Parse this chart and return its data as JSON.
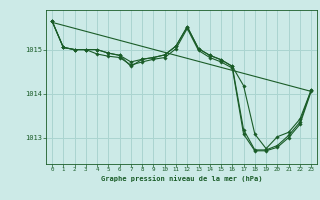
{
  "title": "Graphe pression niveau de la mer (hPa)",
  "background_color": "#cceae7",
  "grid_color": "#aad4d0",
  "line_color": "#1a5c28",
  "marker_color": "#1a5c28",
  "xlim": [
    -0.5,
    23.5
  ],
  "ylim": [
    1012.4,
    1015.9
  ],
  "yticks": [
    1013,
    1014,
    1015
  ],
  "xticks": [
    0,
    1,
    2,
    3,
    4,
    5,
    6,
    7,
    8,
    9,
    10,
    11,
    12,
    13,
    14,
    15,
    16,
    17,
    18,
    19,
    20,
    21,
    22,
    23
  ],
  "series1": [
    1015.65,
    1015.05,
    1015.0,
    1015.0,
    1015.0,
    1014.92,
    1014.87,
    1014.72,
    1014.78,
    1014.82,
    1014.88,
    1015.08,
    1015.52,
    1015.02,
    1014.87,
    1014.77,
    1014.62,
    1014.18,
    1013.08,
    1012.75,
    1013.02,
    1013.12,
    1013.42,
    1014.08
  ],
  "series2": [
    1015.65,
    1015.05,
    1015.0,
    1015.0,
    1015.0,
    1014.92,
    1014.87,
    1014.62,
    1014.78,
    1014.82,
    1014.88,
    1015.08,
    1015.52,
    1015.02,
    1014.87,
    1014.77,
    1014.62,
    1013.18,
    1012.72,
    1012.72,
    1012.82,
    1013.05,
    1013.35,
    1014.08
  ],
  "series3": [
    1015.65,
    1015.05,
    1015.0,
    1015.0,
    1014.9,
    1014.85,
    1014.82,
    1014.65,
    1014.72,
    1014.78,
    1014.82,
    1015.02,
    1015.48,
    1014.98,
    1014.82,
    1014.72,
    1014.58,
    1013.08,
    1012.7,
    1012.7,
    1012.78,
    1013.0,
    1013.3,
    1014.05
  ],
  "trend_x": [
    0,
    23
  ],
  "trend_y": [
    1015.62,
    1014.05
  ]
}
